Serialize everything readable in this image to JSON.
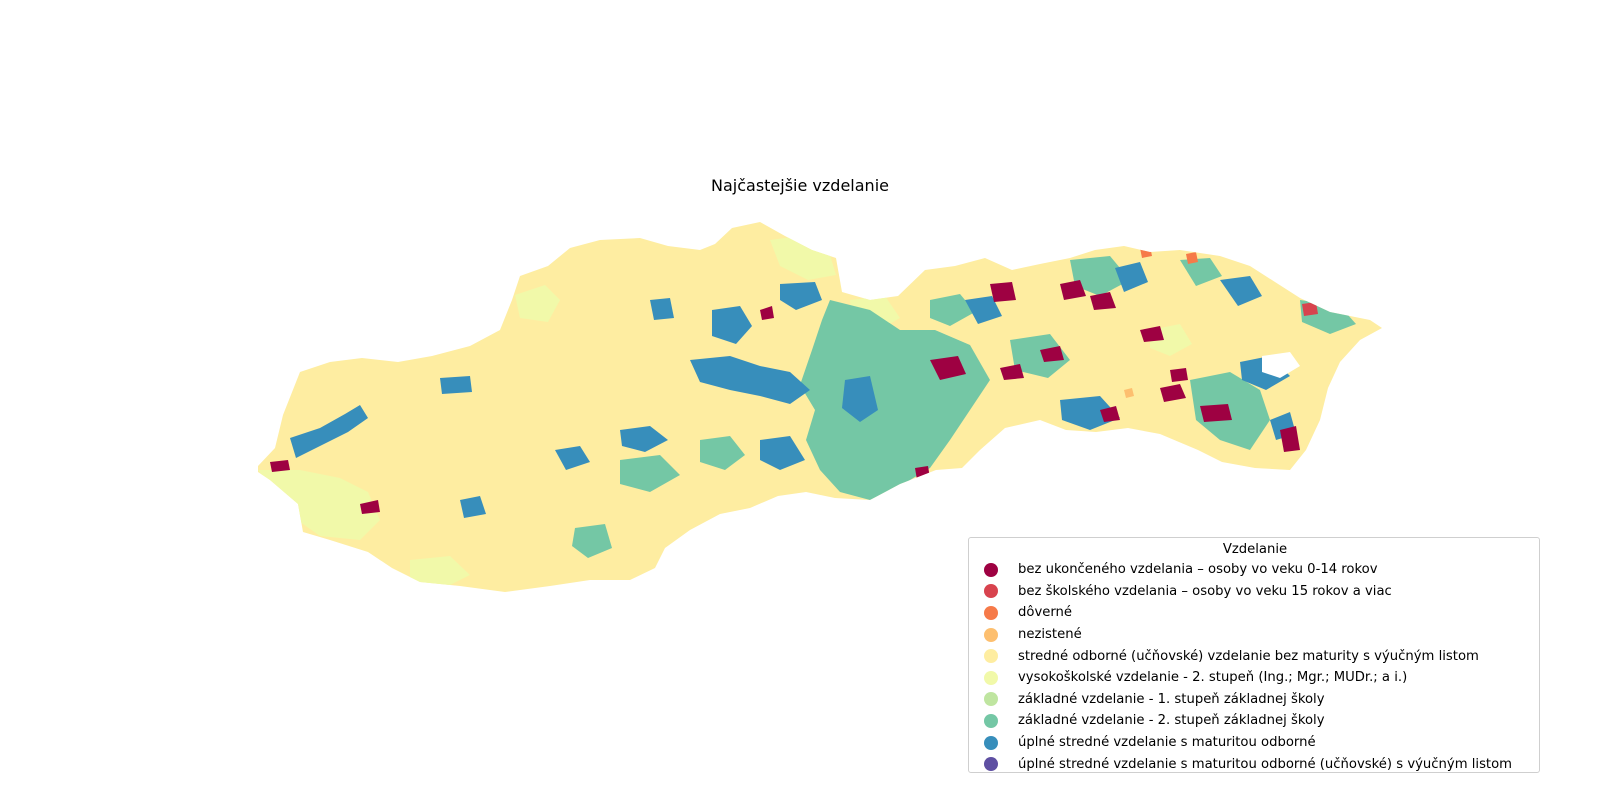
{
  "title": "Najčastejšie vzdelanie",
  "legend": {
    "title": "Vzdelanie",
    "items": [
      {
        "label": "bez ukončeného vzdelania – osoby vo veku 0-14 rokov",
        "color": "#9e0142"
      },
      {
        "label": "bez školského vzdelania – osoby vo veku 15 rokov a viac",
        "color": "#d8434e"
      },
      {
        "label": "dôverné",
        "color": "#f67a49"
      },
      {
        "label": "nezistené",
        "color": "#fdbf6f"
      },
      {
        "label": "stredné odborné (učňovské) vzdelanie bez maturity s výučným listom",
        "color": "#feeda1"
      },
      {
        "label": "vysokoškolské vzdelanie - 2. stupeň (Ing.; Mgr.; MUDr.; a i.)",
        "color": "#f1f9a9"
      },
      {
        "label": "základné vzdelanie - 1. stupeň základnej školy",
        "color": "#bfe5a0"
      },
      {
        "label": "základné vzdelanie - 2. stupeň základnej školy",
        "color": "#74c7a5"
      },
      {
        "label": "úplné stredné vzdelanie s maturitou odborné",
        "color": "#378ebb"
      },
      {
        "label": "úplné stredné vzdelanie s maturitou odborné (učňovské) s výučným listom",
        "color": "#5e4fa2"
      }
    ]
  }
}
